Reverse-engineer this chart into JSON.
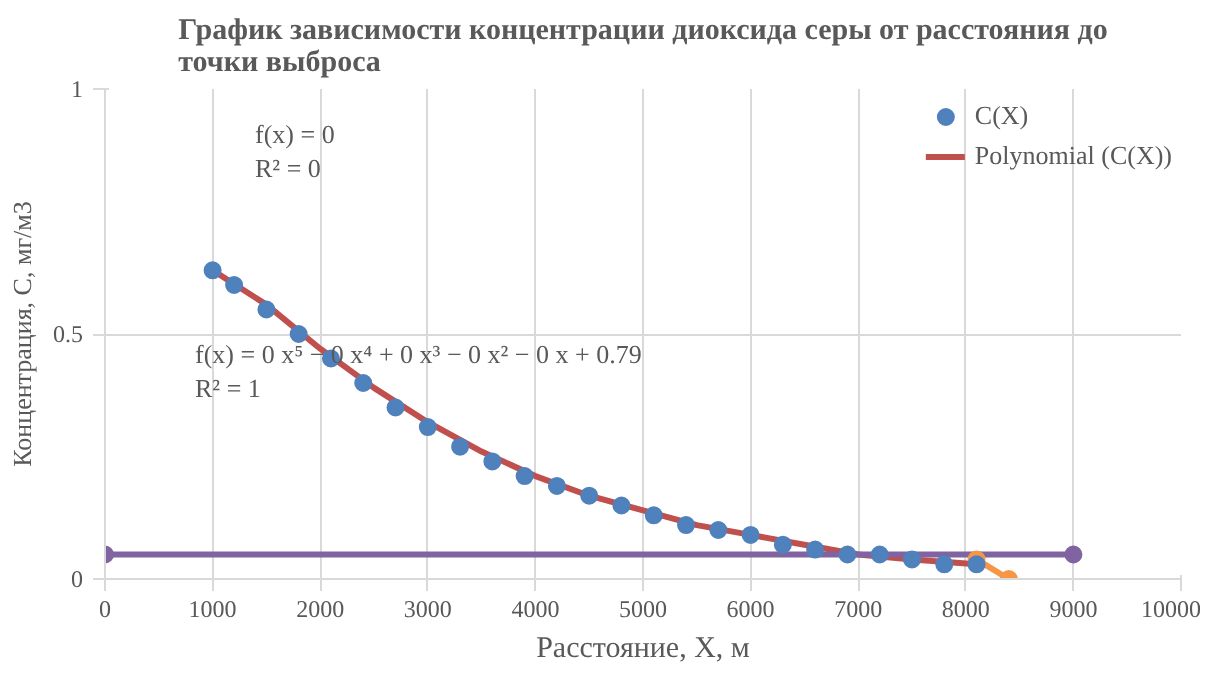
{
  "chart_data": {
    "type": "scatter",
    "title": "График зависимости концентрации диоксида серы от расстояния до точки выброса",
    "xlabel": "Расстояние, X, м",
    "ylabel": "Концентрация, С, мг/м3",
    "annotations": [
      "f(x) = 0",
      "R² = 0",
      "f(x) = 0 x⁵ − 0 x⁴ + 0 x³ − 0 x² − 0 x + 0.79",
      "R² = 1"
    ],
    "xlim": [
      0,
      10000
    ],
    "xticks": [
      0,
      1000,
      2000,
      3000,
      4000,
      5000,
      6000,
      7000,
      8000,
      9000,
      10000
    ],
    "ylim": [
      0,
      1
    ],
    "yticks": [
      0,
      0.5,
      1
    ],
    "grid": true,
    "legend": "top right",
    "series": [
      {
        "name": "C(X)",
        "marker": "circle",
        "color": "#4f81bd",
        "x": [
          1000,
          1200,
          1500,
          1800,
          2100,
          2400,
          2700,
          3000,
          3300,
          3600,
          3900,
          4200,
          4500,
          4800,
          5100,
          5400,
          5700,
          6000,
          6300,
          6600,
          6900,
          7200,
          7500,
          7800,
          8100
        ],
        "values": [
          0.63,
          0.6,
          0.55,
          0.5,
          0.45,
          0.4,
          0.35,
          0.31,
          0.27,
          0.24,
          0.21,
          0.19,
          0.17,
          0.15,
          0.13,
          0.11,
          0.1,
          0.09,
          0.07,
          0.06,
          0.05,
          0.05,
          0.04,
          0.03,
          0.03
        ]
      },
      {
        "name": "Polynomial (C(X))",
        "type": "line",
        "marker": "none",
        "color": "#c0504d",
        "x": [
          1000,
          1500,
          2000,
          2500,
          3000,
          3500,
          4000,
          4500,
          5000,
          5500,
          6000,
          6500,
          7000,
          7500,
          8100
        ],
        "values": [
          0.63,
          0.56,
          0.47,
          0.39,
          0.32,
          0.26,
          0.21,
          0.17,
          0.14,
          0.11,
          0.09,
          0.07,
          0.05,
          0.04,
          0.03
        ]
      },
      {
        "type": "line",
        "marker": "circle",
        "color": "#8064a2",
        "x": [
          0,
          9000
        ],
        "values": [
          0.05,
          0.05
        ]
      },
      {
        "type": "line",
        "marker": "circle",
        "color": "#f79646",
        "x": [
          8100,
          8400
        ],
        "values": [
          0.04,
          0.0
        ]
      }
    ]
  }
}
